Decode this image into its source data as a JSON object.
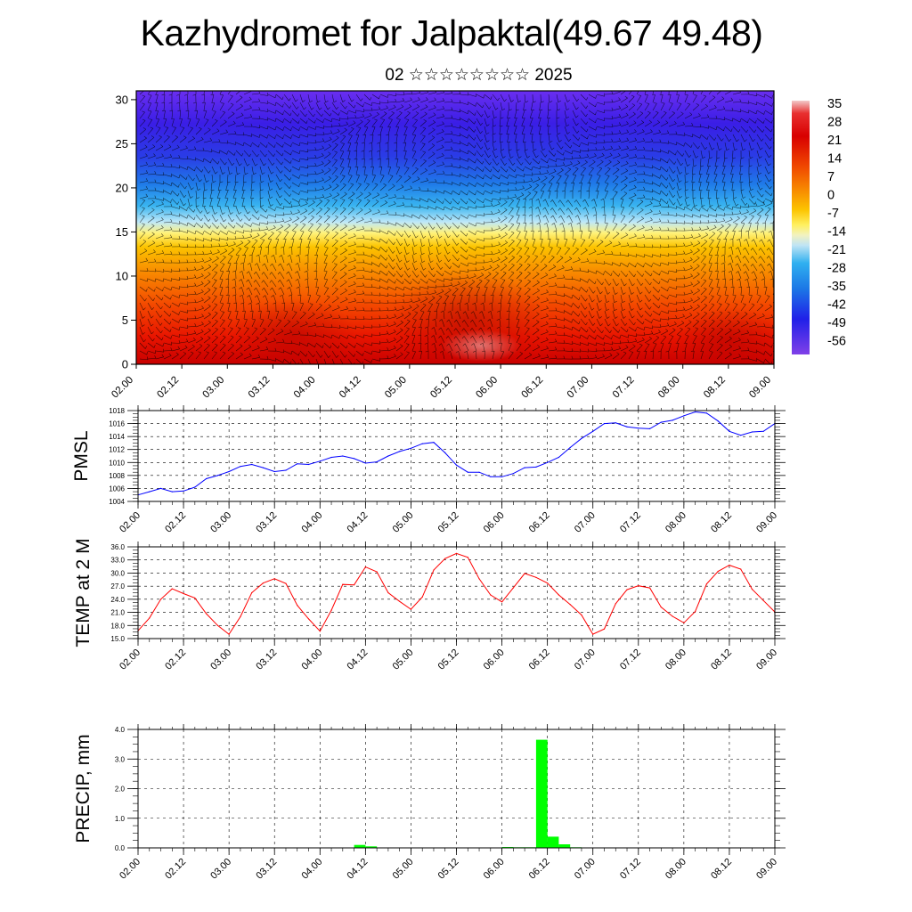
{
  "title": "Kazhydromet for Jalpaktal(49.67 49.48)",
  "subtitle": "02 ☆☆☆☆☆☆☆☆ 2025",
  "colors": {
    "pmsl_line": "#0000ff",
    "temp_line": "#ff0000",
    "precip_bar": "#00ff00",
    "wind_barbs": "#000000"
  },
  "chart_data": [
    {
      "id": "cross_section",
      "type": "heatmap",
      "title": "",
      "ylabel": "",
      "xlim": [
        0,
        168
      ],
      "ylim": [
        0,
        31
      ],
      "x_ticks": [
        "02.00",
        "02.12",
        "03.00",
        "03.12",
        "04.00",
        "04.12",
        "05.00",
        "05.12",
        "06.00",
        "06.12",
        "07.00",
        "07.12",
        "08.00",
        "08.12",
        "09.00"
      ],
      "y_ticks": [
        0,
        5,
        10,
        15,
        20,
        25,
        30
      ],
      "colorbar_labels": [
        "35",
        "28",
        "21",
        "14",
        "7",
        "0",
        "-7",
        "-14",
        "-21",
        "-28",
        "-35",
        "-42",
        "-49",
        "-56"
      ],
      "overlay": "wind barbs (black)",
      "description_values": {
        "surface_max_temp": 35,
        "top_min_temp": -56
      }
    },
    {
      "id": "pmsl",
      "type": "line",
      "ylabel": "PMSL",
      "ylim": [
        1004,
        1018
      ],
      "y_ticks": [
        "1004",
        "1006",
        "1008",
        "1010",
        "1012",
        "1014",
        "1016",
        "1018"
      ],
      "x_ticks": [
        "02.00",
        "02.12",
        "03.00",
        "03.12",
        "04.00",
        "04.12",
        "05.00",
        "05.12",
        "06.00",
        "06.12",
        "07.00",
        "07.12",
        "08.00",
        "08.12",
        "09.00"
      ],
      "x": [
        0,
        3,
        6,
        9,
        12,
        15,
        18,
        21,
        24,
        27,
        30,
        33,
        36,
        39,
        42,
        45,
        48,
        51,
        54,
        57,
        60,
        63,
        66,
        69,
        72,
        75,
        78,
        81,
        84,
        87,
        90,
        93,
        96,
        99,
        102,
        105,
        108,
        111,
        114,
        117,
        120,
        123,
        126,
        129,
        132,
        135,
        138,
        141,
        144,
        147,
        150,
        153,
        156,
        159,
        162,
        165,
        168
      ],
      "values": [
        1005.0,
        1005.5,
        1006.0,
        1005.5,
        1005.6,
        1006.2,
        1007.5,
        1008.0,
        1008.6,
        1009.4,
        1009.7,
        1009.2,
        1008.6,
        1008.8,
        1009.8,
        1009.7,
        1010.2,
        1010.8,
        1011.0,
        1010.6,
        1009.9,
        1010.1,
        1011.0,
        1011.7,
        1012.2,
        1012.9,
        1013.1,
        1011.5,
        1009.6,
        1008.5,
        1008.5,
        1007.8,
        1007.8,
        1008.3,
        1009.2,
        1009.3,
        1010.0,
        1010.8,
        1012.3,
        1013.7,
        1014.8,
        1016.0,
        1016.1,
        1015.5,
        1015.3,
        1015.2,
        1016.2,
        1016.5,
        1017.2,
        1017.8,
        1017.6,
        1016.4,
        1014.8,
        1014.2,
        1014.7,
        1014.8,
        1016.0
      ],
      "series_name": ""
    },
    {
      "id": "temp",
      "type": "line",
      "ylabel": "TEMP at 2 M",
      "ylim": [
        15,
        36
      ],
      "y_ticks": [
        "15.0",
        "18.0",
        "21.0",
        "24.0",
        "27.0",
        "30.0",
        "33.0",
        "36.0"
      ],
      "x_ticks": [
        "02.00",
        "02.12",
        "03.00",
        "03.12",
        "04.00",
        "04.12",
        "05.00",
        "05.12",
        "06.00",
        "06.12",
        "07.00",
        "07.12",
        "08.00",
        "08.12",
        "09.00"
      ],
      "x": [
        0,
        3,
        6,
        9,
        12,
        15,
        18,
        21,
        24,
        27,
        30,
        33,
        36,
        39,
        42,
        45,
        48,
        51,
        54,
        57,
        60,
        63,
        66,
        69,
        72,
        75,
        78,
        81,
        84,
        87,
        90,
        93,
        96,
        99,
        102,
        105,
        108,
        111,
        114,
        117,
        120,
        123,
        126,
        129,
        132,
        135,
        138,
        141,
        144,
        147,
        150,
        153,
        156,
        159,
        162,
        165,
        168
      ],
      "values": [
        16.8,
        19.7,
        24.0,
        26.4,
        25.3,
        24.3,
        20.7,
        18.0,
        16.0,
        20.0,
        25.5,
        27.7,
        28.7,
        27.6,
        22.6,
        19.5,
        16.7,
        21.5,
        27.4,
        27.3,
        31.4,
        30.3,
        25.5,
        23.5,
        21.7,
        24.5,
        30.7,
        33.3,
        34.5,
        33.6,
        28.7,
        25.0,
        23.4,
        26.6,
        29.9,
        29.0,
        27.7,
        25.0,
        22.8,
        20.4,
        16.0,
        17.2,
        23.0,
        26.2,
        27.1,
        26.6,
        22.2,
        20.1,
        18.6,
        21.2,
        27.5,
        30.4,
        31.8,
        30.9,
        26.3,
        23.7,
        21.1
      ],
      "series_name": ""
    },
    {
      "id": "precip",
      "type": "bar",
      "ylabel": "PRECIP, mm",
      "ylim": [
        0,
        4
      ],
      "y_ticks": [
        "0.0",
        "1.0",
        "2.0",
        "3.0",
        "4.0"
      ],
      "x_ticks": [
        "02.00",
        "02.12",
        "03.00",
        "03.12",
        "04.00",
        "04.12",
        "05.00",
        "05.12",
        "06.00",
        "06.12",
        "07.00",
        "07.12",
        "08.00",
        "08.12",
        "09.00"
      ],
      "bar_width_hours": 3,
      "bars": [
        {
          "x": 57,
          "value": 0.1
        },
        {
          "x": 60,
          "value": 0.05
        },
        {
          "x": 96,
          "value": 0.03
        },
        {
          "x": 99,
          "value": 0.02
        },
        {
          "x": 102,
          "value": 0.02
        },
        {
          "x": 105,
          "value": 3.65
        },
        {
          "x": 108,
          "value": 0.38
        },
        {
          "x": 111,
          "value": 0.12
        },
        {
          "x": 114,
          "value": 0.02
        }
      ]
    }
  ]
}
